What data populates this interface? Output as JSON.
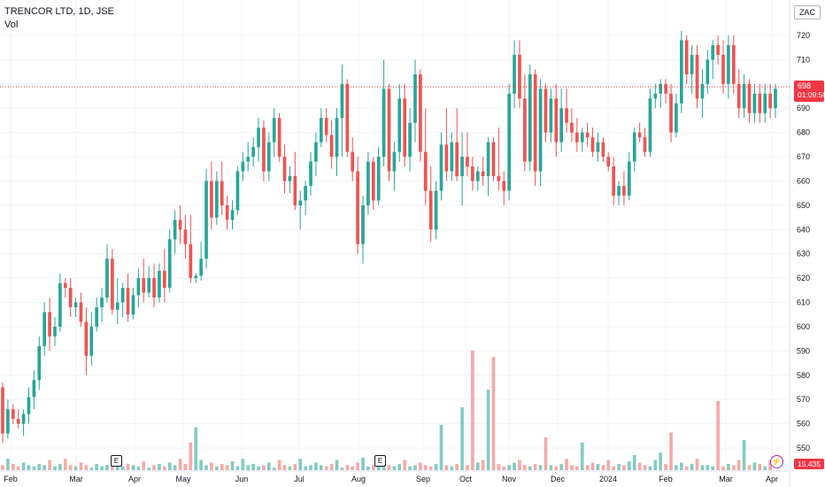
{
  "legend": {
    "title": "TRENCOR LTD, 1D, JSE",
    "volume_label": "Vol"
  },
  "currency_label": "ZAC",
  "last_price": {
    "price": "698",
    "countdown": "01:09:50",
    "color": "#f23645"
  },
  "last_volume": "15.435 K",
  "earnings_marker": "E",
  "colors": {
    "up": "#26a69a",
    "down": "#ef5350",
    "up_vol": "#82cbc4",
    "down_vol": "#f7a9a7",
    "grid": "#f0f3fa"
  },
  "chart_data": {
    "type": "candlestick",
    "title": "TRENCOR LTD, 1D, JSE",
    "price_axis": {
      "ylim": [
        543,
        725
      ],
      "ticks": [
        720,
        710,
        700,
        690,
        680,
        670,
        660,
        650,
        640,
        630,
        620,
        610,
        600,
        590,
        580,
        570,
        560,
        550
      ],
      "side": "right"
    },
    "x_axis_labels": [
      "Feb",
      "Mar",
      "Apr",
      "May",
      "Jun",
      "Jul",
      "Aug",
      "Sep",
      "Oct",
      "Nov",
      "Dec",
      "2024",
      "Feb",
      "Mar",
      "Apr"
    ],
    "grid": true,
    "candles": [
      [
        575,
        577,
        552,
        556
      ],
      [
        556,
        570,
        554,
        566
      ],
      [
        566,
        568,
        560,
        562
      ],
      [
        562,
        566,
        558,
        560
      ],
      [
        560,
        566,
        555,
        564
      ],
      [
        564,
        575,
        560,
        571
      ],
      [
        571,
        582,
        566,
        578
      ],
      [
        578,
        596,
        574,
        592
      ],
      [
        592,
        610,
        588,
        606
      ],
      [
        606,
        612,
        590,
        596
      ],
      [
        596,
        604,
        592,
        600
      ],
      [
        600,
        622,
        598,
        618
      ],
      [
        618,
        620,
        612,
        616
      ],
      [
        616,
        620,
        604,
        608
      ],
      [
        608,
        612,
        604,
        610
      ],
      [
        610,
        614,
        600,
        602
      ],
      [
        602,
        608,
        580,
        588
      ],
      [
        588,
        606,
        584,
        600
      ],
      [
        600,
        612,
        598,
        608
      ],
      [
        608,
        616,
        602,
        612
      ],
      [
        612,
        634,
        610,
        628
      ],
      [
        628,
        632,
        605,
        607
      ],
      [
        607,
        620,
        601,
        610
      ],
      [
        610,
        618,
        604,
        616
      ],
      [
        616,
        622,
        602,
        605
      ],
      [
        605,
        616,
        603,
        613
      ],
      [
        613,
        624,
        608,
        620
      ],
      [
        620,
        628,
        610,
        614
      ],
      [
        614,
        625,
        612,
        620
      ],
      [
        620,
        626,
        608,
        612
      ],
      [
        612,
        626,
        610,
        623
      ],
      [
        623,
        632,
        610,
        616
      ],
      [
        616,
        640,
        614,
        636
      ],
      [
        636,
        648,
        630,
        644
      ],
      [
        644,
        650,
        634,
        640
      ],
      [
        640,
        646,
        628,
        634
      ],
      [
        634,
        646,
        618,
        620
      ],
      [
        620,
        622,
        618,
        621
      ],
      [
        621,
        635,
        619,
        628
      ],
      [
        628,
        665,
        624,
        660
      ],
      [
        660,
        668,
        640,
        645
      ],
      [
        645,
        664,
        642,
        660
      ],
      [
        660,
        668,
        646,
        650
      ],
      [
        650,
        654,
        640,
        644
      ],
      [
        644,
        652,
        640,
        648
      ],
      [
        648,
        666,
        646,
        664
      ],
      [
        664,
        672,
        660,
        668
      ],
      [
        668,
        676,
        664,
        670
      ],
      [
        670,
        678,
        666,
        674
      ],
      [
        674,
        686,
        668,
        682
      ],
      [
        682,
        685,
        660,
        664
      ],
      [
        664,
        680,
        660,
        676
      ],
      [
        676,
        690,
        670,
        686
      ],
      [
        686,
        688,
        668,
        670
      ],
      [
        670,
        675,
        655,
        660
      ],
      [
        660,
        666,
        655,
        662
      ],
      [
        662,
        672,
        648,
        650
      ],
      [
        650,
        656,
        640,
        652
      ],
      [
        652,
        660,
        646,
        658
      ],
      [
        658,
        672,
        654,
        668
      ],
      [
        668,
        680,
        662,
        676
      ],
      [
        676,
        690,
        674,
        686
      ],
      [
        686,
        690,
        676,
        679
      ],
      [
        679,
        685,
        665,
        670
      ],
      [
        670,
        690,
        662,
        686
      ],
      [
        686,
        708,
        670,
        700
      ],
      [
        700,
        702,
        670,
        672
      ],
      [
        672,
        678,
        660,
        664
      ],
      [
        664,
        670,
        630,
        634
      ],
      [
        634,
        654,
        626,
        650
      ],
      [
        650,
        672,
        646,
        668
      ],
      [
        668,
        670,
        648,
        652
      ],
      [
        652,
        674,
        650,
        670
      ],
      [
        670,
        710,
        666,
        698
      ],
      [
        698,
        700,
        660,
        664
      ],
      [
        664,
        676,
        656,
        672
      ],
      [
        672,
        700,
        668,
        694
      ],
      [
        694,
        700,
        666,
        670
      ],
      [
        670,
        690,
        664,
        684
      ],
      [
        684,
        710,
        676,
        704
      ],
      [
        704,
        706,
        668,
        672
      ],
      [
        672,
        690,
        650,
        656
      ],
      [
        656,
        666,
        635,
        640
      ],
      [
        640,
        660,
        636,
        656
      ],
      [
        656,
        680,
        652,
        675
      ],
      [
        675,
        690,
        660,
        664
      ],
      [
        664,
        680,
        660,
        676
      ],
      [
        676,
        690,
        660,
        662
      ],
      [
        662,
        680,
        650,
        670
      ],
      [
        670,
        680,
        662,
        666
      ],
      [
        666,
        670,
        656,
        660
      ],
      [
        660,
        666,
        656,
        664
      ],
      [
        664,
        670,
        658,
        662
      ],
      [
        662,
        678,
        654,
        676
      ],
      [
        676,
        678,
        660,
        662
      ],
      [
        662,
        682,
        656,
        660
      ],
      [
        660,
        664,
        650,
        656
      ],
      [
        656,
        700,
        652,
        696
      ],
      [
        696,
        718,
        690,
        712
      ],
      [
        712,
        718,
        690,
        694
      ],
      [
        694,
        704,
        664,
        668
      ],
      [
        668,
        708,
        664,
        704
      ],
      [
        704,
        706,
        658,
        664
      ],
      [
        664,
        702,
        658,
        698
      ],
      [
        698,
        700,
        676,
        680
      ],
      [
        680,
        698,
        676,
        694
      ],
      [
        694,
        700,
        670,
        676
      ],
      [
        676,
        698,
        672,
        690
      ],
      [
        690,
        698,
        680,
        684
      ],
      [
        684,
        690,
        676,
        680
      ],
      [
        680,
        686,
        672,
        676
      ],
      [
        676,
        682,
        672,
        680
      ],
      [
        680,
        684,
        674,
        678
      ],
      [
        678,
        682,
        670,
        672
      ],
      [
        672,
        680,
        668,
        676
      ],
      [
        676,
        678,
        668,
        670
      ],
      [
        670,
        672,
        664,
        666
      ],
      [
        666,
        670,
        650,
        654
      ],
      [
        654,
        660,
        650,
        658
      ],
      [
        658,
        664,
        650,
        654
      ],
      [
        654,
        672,
        652,
        668
      ],
      [
        668,
        682,
        664,
        680
      ],
      [
        680,
        684,
        676,
        678
      ],
      [
        678,
        682,
        670,
        672
      ],
      [
        672,
        698,
        670,
        694
      ],
      [
        694,
        700,
        690,
        696
      ],
      [
        696,
        702,
        690,
        700
      ],
      [
        700,
        702,
        692,
        696
      ],
      [
        696,
        700,
        676,
        680
      ],
      [
        680,
        696,
        678,
        692
      ],
      [
        692,
        722,
        688,
        718
      ],
      [
        718,
        720,
        700,
        704
      ],
      [
        704,
        716,
        696,
        712
      ],
      [
        712,
        716,
        690,
        694
      ],
      [
        694,
        706,
        686,
        700
      ],
      [
        700,
        714,
        696,
        710
      ],
      [
        710,
        718,
        702,
        716
      ],
      [
        716,
        720,
        708,
        712
      ],
      [
        712,
        718,
        696,
        700
      ],
      [
        700,
        720,
        694,
        716
      ],
      [
        716,
        720,
        696,
        700
      ],
      [
        700,
        706,
        686,
        690
      ],
      [
        690,
        704,
        686,
        700
      ],
      [
        700,
        702,
        684,
        688
      ],
      [
        688,
        700,
        684,
        696
      ],
      [
        696,
        700,
        684,
        688
      ],
      [
        688,
        700,
        684,
        696
      ],
      [
        696,
        700,
        686,
        690
      ],
      [
        690,
        700,
        686,
        698
      ]
    ],
    "volume": {
      "label": "Vol",
      "values": [
        4,
        9,
        5,
        3,
        6,
        4,
        3,
        5,
        4,
        8,
        3,
        5,
        9,
        4,
        3,
        6,
        4,
        2,
        5,
        3,
        4,
        8,
        6,
        3,
        5,
        4,
        3,
        7,
        2,
        4,
        5,
        3,
        6,
        4,
        9,
        5,
        22,
        34,
        8,
        4,
        6,
        3,
        5,
        4,
        7,
        3,
        9,
        4,
        5,
        3,
        4,
        6,
        2,
        8,
        4,
        3,
        5,
        9,
        3,
        4,
        6,
        4,
        3,
        5,
        8,
        2,
        4,
        3,
        6,
        10,
        3,
        4,
        5,
        6,
        4,
        3,
        5,
        8,
        3,
        4,
        6,
        4,
        3,
        5,
        36,
        4,
        3,
        5,
        50,
        4,
        95,
        6,
        8,
        64,
        90,
        5,
        3,
        4,
        6,
        8,
        4,
        3,
        5,
        4,
        26,
        4,
        3,
        5,
        9,
        4,
        3,
        22,
        4,
        6,
        5,
        4,
        8,
        3,
        5,
        4,
        7,
        12,
        6,
        4,
        3,
        8,
        14,
        5,
        30,
        4,
        6,
        3,
        5,
        9,
        4,
        4,
        3,
        55,
        3,
        5,
        4,
        8,
        24,
        4,
        6,
        5,
        3,
        8
      ]
    }
  }
}
